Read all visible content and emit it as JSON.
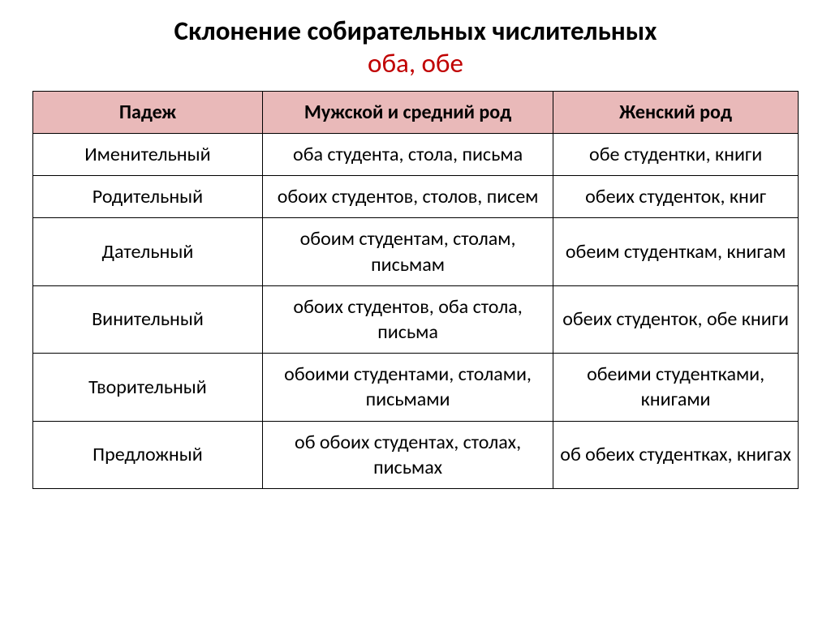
{
  "title": {
    "line1": "Склонение собирательных числительных",
    "line2": "оба, обе",
    "line2_color": "#c00000"
  },
  "table": {
    "header_bg": "#e9b9b9",
    "columns": [
      "Падеж",
      "Мужской и средний род",
      "Женский род"
    ],
    "rows": [
      [
        "Именительный",
        "оба студента, стола, письма",
        "обе студентки, книги"
      ],
      [
        "Родительный",
        "обоих студентов, столов, писем",
        "обеих студенток, книг"
      ],
      [
        "Дательный",
        "обоим студентам, столам, письмам",
        "обеим студенткам, книгам"
      ],
      [
        "Винительный",
        "обоих студентов, оба стола, письма",
        "обеих студенток, обе книги"
      ],
      [
        "Творительный",
        "обоими студентами, столами, письмами",
        "обеими студентками, книгами"
      ],
      [
        "Предложный",
        "об обоих студентах, столах, письмах",
        "об обеих студентках, книгах"
      ]
    ]
  }
}
